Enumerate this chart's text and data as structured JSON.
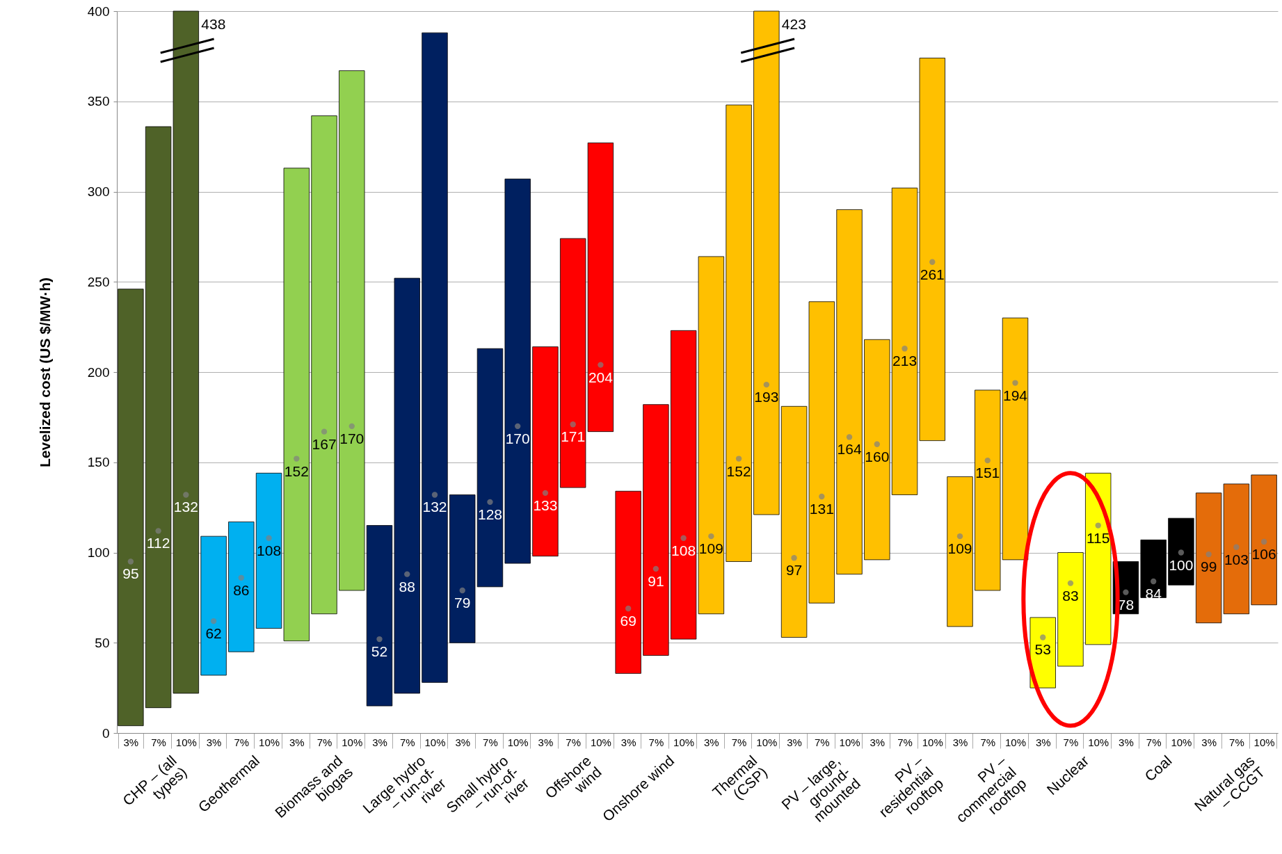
{
  "chart_data": {
    "type": "bar",
    "ylabel": "Levelized cost (US $/MW·h)",
    "ylim": [
      0,
      400
    ],
    "yticks": [
      0,
      50,
      100,
      150,
      200,
      250,
      300,
      350,
      400
    ],
    "grid": "y",
    "categories": [
      "3%",
      "7%",
      "10%",
      "3%",
      "7%",
      "10%",
      "3%",
      "7%",
      "10%",
      "3%",
      "7%",
      "10%",
      "3%",
      "7%",
      "10%",
      "3%",
      "7%",
      "10%",
      "3%",
      "7%",
      "10%",
      "3%",
      "7%",
      "10%",
      "3%",
      "7%",
      "10%",
      "3%",
      "7%",
      "10%",
      "3%",
      "7%",
      "10%",
      "3%",
      "7%",
      "10%",
      "3%",
      "7%",
      "10%",
      "3%",
      "7%",
      "10%"
    ],
    "annotations": [
      "CHP – (all types)",
      "Geothermal",
      "Biomass and biogas",
      "Large hydro – run-of-river",
      "Small hydro – run-of-river",
      "Offshore wind",
      "Onshore wind",
      "Thermal (CSP)",
      "PV – large, ground-mounted",
      "PV – residential rooftop",
      "PV – commercial rooftop",
      "Nuclear",
      "Coal",
      "Natural gas – CCGT",
      "438",
      "423"
    ],
    "series": [
      {
        "type": "bar",
        "base": [
          4,
          14,
          22,
          32,
          45,
          58,
          51,
          66,
          79,
          15,
          22,
          28,
          50,
          81,
          94,
          98,
          136,
          167,
          33,
          43,
          52,
          66,
          95,
          121,
          53,
          72,
          88,
          96,
          132,
          162,
          59,
          79,
          96,
          25,
          37,
          49,
          66,
          75,
          82,
          61,
          66,
          71
        ],
        "values": [
          242,
          322,
          378,
          77,
          72,
          86,
          262,
          276,
          288,
          100,
          230,
          360,
          82,
          132,
          213,
          116,
          138,
          160,
          101,
          139,
          171,
          198,
          253,
          279,
          128,
          167,
          202,
          122,
          170,
          212,
          83,
          111,
          134,
          39,
          63,
          95,
          29,
          32,
          37,
          72,
          72,
          72
        ],
        "colors": [
          "#4f6228",
          "#4f6228",
          "#4f6228",
          "#00b0f0",
          "#00b0f0",
          "#00b0f0",
          "#92d050",
          "#92d050",
          "#92d050",
          "#002060",
          "#002060",
          "#002060",
          "#002060",
          "#002060",
          "#002060",
          "#ff0000",
          "#ff0000",
          "#ff0000",
          "#ff0000",
          "#ff0000",
          "#ff0000",
          "#ffc000",
          "#ffc000",
          "#ffc000",
          "#ffc000",
          "#ffc000",
          "#ffc000",
          "#ffc000",
          "#ffc000",
          "#ffc000",
          "#ffc000",
          "#ffc000",
          "#ffc000",
          "#ffff00",
          "#ffff00",
          "#ffff00",
          "#000000",
          "#000000",
          "#000000",
          "#e46c0a",
          "#e46c0a",
          "#e46c0a"
        ]
      },
      {
        "type": "scatter",
        "color": "#808080",
        "marker": "circle",
        "data_labels": true,
        "values": [
          95,
          112,
          132,
          62,
          86,
          108,
          152,
          167,
          170,
          52,
          88,
          132,
          79,
          128,
          170,
          133,
          171,
          204,
          69,
          91,
          108,
          109,
          152,
          193,
          97,
          131,
          164,
          160,
          213,
          261,
          109,
          151,
          194,
          53,
          83,
          115,
          78,
          84,
          100,
          99,
          103,
          106
        ]
      }
    ]
  }
}
